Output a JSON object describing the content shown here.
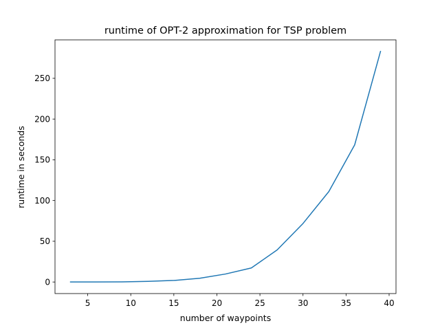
{
  "chart_data": {
    "type": "line",
    "title": "runtime of OPT-2 approximation for TSP problem",
    "xlabel": "number of waypoints",
    "ylabel": "runtime in seconds",
    "xlim": [
      1.2,
      40.8
    ],
    "ylim": [
      -14.2,
      297.2
    ],
    "xticks": [
      5,
      10,
      15,
      20,
      25,
      30,
      35,
      40
    ],
    "yticks": [
      0,
      50,
      100,
      150,
      200,
      250
    ],
    "grid": false,
    "series": [
      {
        "color": "#1f77b4",
        "x": [
          3,
          6,
          9,
          12,
          15,
          18,
          21,
          24,
          27,
          30,
          33,
          36,
          39
        ],
        "y": [
          0.0,
          0.05,
          0.2,
          0.8,
          1.9,
          4.6,
          9.8,
          17.2,
          39.4,
          71.8,
          111.0,
          168.3,
          283.0
        ]
      }
    ]
  }
}
